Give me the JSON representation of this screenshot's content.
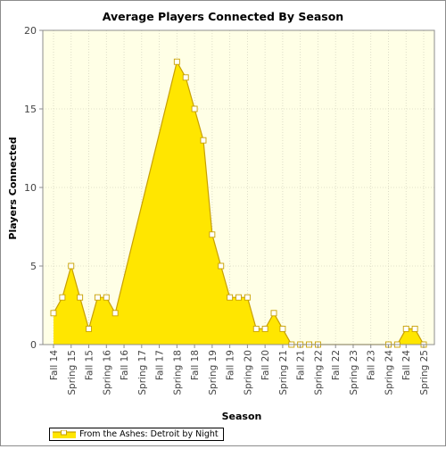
{
  "chart_data": {
    "type": "area",
    "title": "Average Players Connected By Season",
    "xlabel": "Season",
    "ylabel": "Players Connected",
    "ylim": [
      0,
      20
    ],
    "yticks": [
      0,
      5,
      10,
      15,
      20
    ],
    "grid": true,
    "legend_position": "bottom-left",
    "colors": {
      "fill": "#ffe600",
      "line": "#c8a000",
      "plot_bg": "#ffffe6",
      "marker": "#ffffff"
    },
    "categories": [
      "Fall 14",
      "Spring 15",
      "Fall 15",
      "Spring 16",
      "Fall 16",
      "Spring 17",
      "Fall 17",
      "Spring 18",
      "Fall 18",
      "Spring 19",
      "Fall 19",
      "Spring 20",
      "Fall 20",
      "Spring 21",
      "Fall 21",
      "Spring 22",
      "Fall 22",
      "Spring 23",
      "Fall 23",
      "Spring 24",
      "Fall 24",
      "Spring 25"
    ],
    "series": [
      {
        "name": "From the Ashes: Detroit by Night",
        "points": [
          {
            "x": 0,
            "y": 2
          },
          {
            "x": 0.5,
            "y": 3
          },
          {
            "x": 1,
            "y": 5
          },
          {
            "x": 1.5,
            "y": 3
          },
          {
            "x": 2,
            "y": 1
          },
          {
            "x": 2.5,
            "y": 3
          },
          {
            "x": 3,
            "y": 3
          },
          {
            "x": 3.5,
            "y": 2
          },
          {
            "x": 7,
            "y": 18
          },
          {
            "x": 7.5,
            "y": 17
          },
          {
            "x": 8,
            "y": 15
          },
          {
            "x": 8.5,
            "y": 13
          },
          {
            "x": 9,
            "y": 7
          },
          {
            "x": 9.5,
            "y": 5
          },
          {
            "x": 10,
            "y": 3
          },
          {
            "x": 10.5,
            "y": 3
          },
          {
            "x": 11,
            "y": 3
          },
          {
            "x": 11.5,
            "y": 1
          },
          {
            "x": 12,
            "y": 1
          },
          {
            "x": 12.5,
            "y": 2
          },
          {
            "x": 13,
            "y": 1
          },
          {
            "x": 13.5,
            "y": 0
          },
          {
            "x": 14,
            "y": 0
          },
          {
            "x": 14.5,
            "y": 0
          },
          {
            "x": 15,
            "y": 0
          },
          {
            "x": 19,
            "y": 0
          },
          {
            "x": 19.5,
            "y": 0
          },
          {
            "x": 20,
            "y": 1
          },
          {
            "x": 20.5,
            "y": 1
          },
          {
            "x": 21,
            "y": 0
          }
        ]
      }
    ]
  }
}
